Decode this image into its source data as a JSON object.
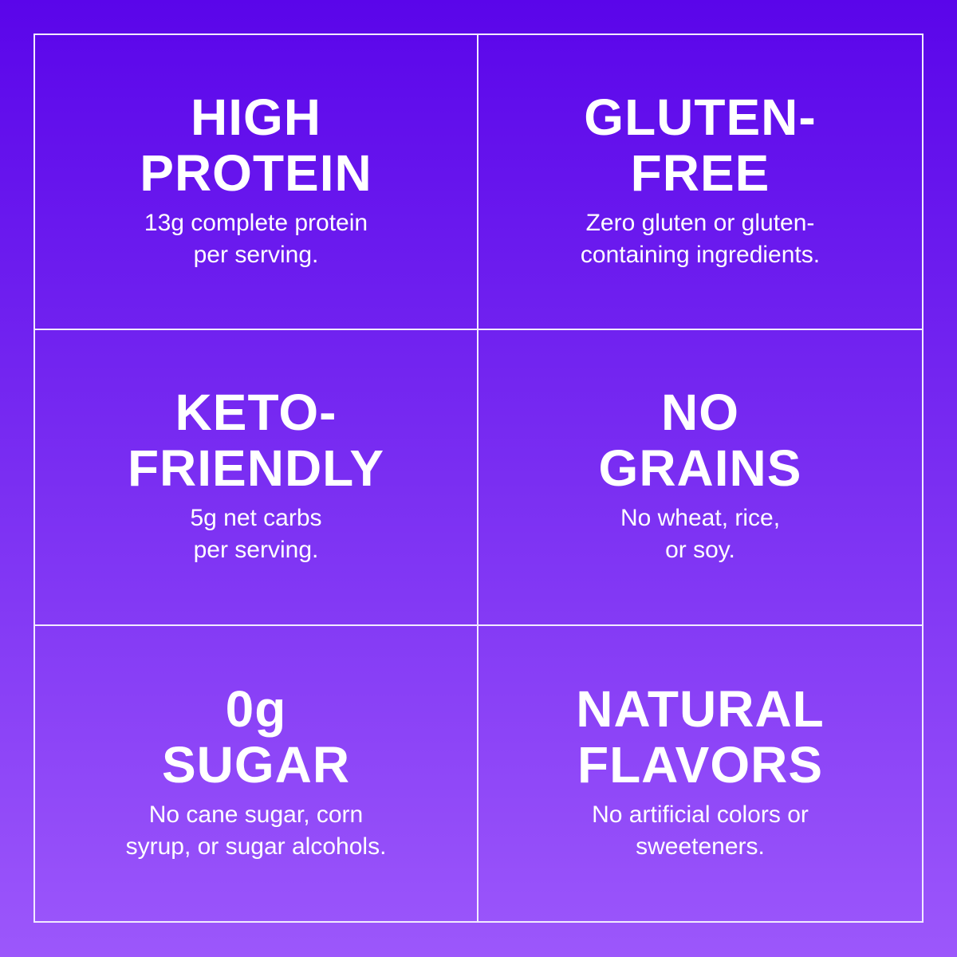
{
  "colors": {
    "gradient_top": "#5a05ea",
    "gradient_bottom": "#9c57fb",
    "lines": "#f2eaff",
    "text": "#ffffff"
  },
  "features": [
    {
      "title": "HIGH\nPROTEIN",
      "description": "13g complete protein\nper serving."
    },
    {
      "title": "GLUTEN-\nFREE",
      "description": "Zero gluten or gluten-\ncontaining ingredients."
    },
    {
      "title": "KETO-\nFRIENDLY",
      "description": "5g net carbs\nper serving."
    },
    {
      "title": "NO\nGRAINS",
      "description": "No wheat, rice,\nor soy."
    },
    {
      "title": "0g\nSUGAR",
      "description": "No cane sugar, corn\nsyrup, or sugar alcohols."
    },
    {
      "title": "NATURAL\nFLAVORS",
      "description": "No artificial colors or\nsweeteners."
    }
  ]
}
